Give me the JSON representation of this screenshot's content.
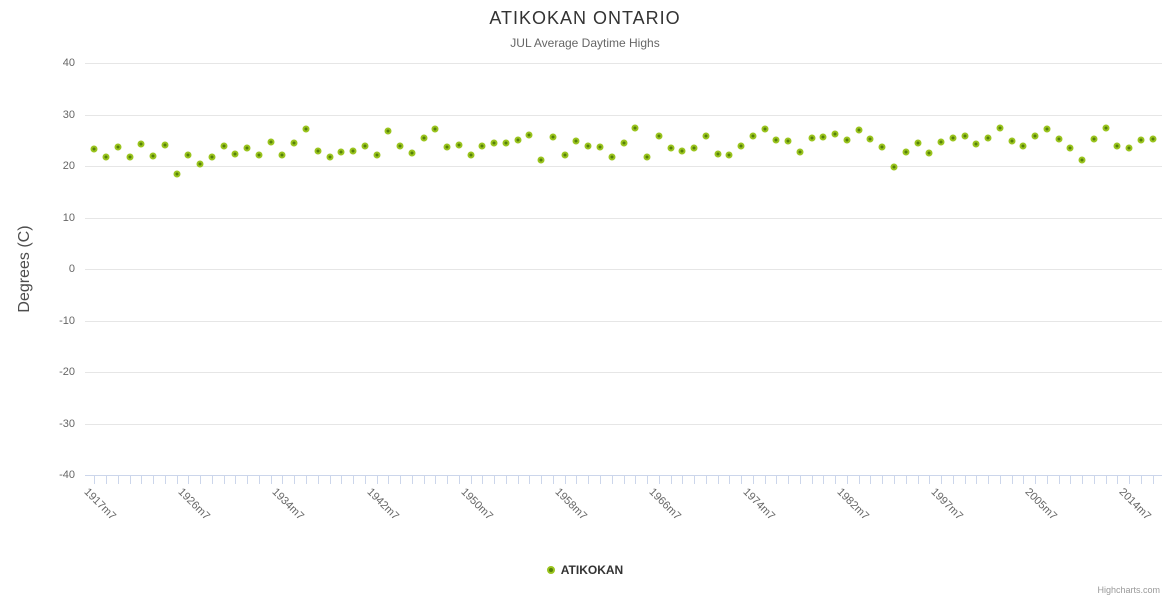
{
  "header": {
    "title": "ATIKOKAN ONTARIO",
    "subtitle": "JUL Average Daytime Highs"
  },
  "y_axis": {
    "title": "Degrees (C)"
  },
  "legend": {
    "label": "ATIKOKAN"
  },
  "credits": {
    "label": "Highcharts.com"
  },
  "colors": {
    "marker_ring": "#9ac41e",
    "marker_core": "#558009",
    "grid": "#e6e6e6",
    "axis": "#ccd6eb",
    "axis_label": "#666666",
    "title": "#333333"
  },
  "chart_data": {
    "type": "scatter",
    "title": "ATIKOKAN ONTARIO",
    "subtitle": "JUL Average Daytime Highs",
    "xlabel": "",
    "ylabel": "Degrees (C)",
    "ylim": [
      -40,
      40
    ],
    "y_ticks": [
      40,
      30,
      20,
      10,
      0,
      -10,
      -20,
      -30,
      -40
    ],
    "grid": "horizontal",
    "legend_position": "bottom-center",
    "x_tick_labels": [
      "1917m7",
      "1926m7",
      "1934m7",
      "1942m7",
      "1950m7",
      "1958m7",
      "1966m7",
      "1974m7",
      "1982m7",
      "1997m7",
      "2005m7",
      "2014m7"
    ],
    "x_tick_indices": [
      0,
      8,
      16,
      24,
      32,
      40,
      48,
      56,
      64,
      72,
      80,
      88
    ],
    "series": [
      {
        "name": "ATIKOKAN",
        "values": [
          23.3,
          21.7,
          23.7,
          21.7,
          24.3,
          22.0,
          24.0,
          18.4,
          22.2,
          20.4,
          21.8,
          23.8,
          22.4,
          23.5,
          22.1,
          24.7,
          22.2,
          24.4,
          27.1,
          22.9,
          21.8,
          22.7,
          22.9,
          23.8,
          22.2,
          26.7,
          23.9,
          22.5,
          25.5,
          27.1,
          23.6,
          24.0,
          22.1,
          23.9,
          24.4,
          24.5,
          25.1,
          26.0,
          21.1,
          25.6,
          22.2,
          24.8,
          23.9,
          23.7,
          21.8,
          24.5,
          27.4,
          21.8,
          25.8,
          23.5,
          22.9,
          23.5,
          25.9,
          22.4,
          22.2,
          23.8,
          25.9,
          27.2,
          25.1,
          24.9,
          22.7,
          25.5,
          25.7,
          26.2,
          25.0,
          27.0,
          25.3,
          23.7,
          19.9,
          22.7,
          24.4,
          22.5,
          24.7,
          25.5,
          25.8,
          24.2,
          25.5,
          27.4,
          24.8,
          23.9,
          25.9,
          27.1,
          25.3,
          23.4,
          21.1,
          25.3,
          27.3,
          23.8,
          23.5,
          25.1,
          25.2
        ]
      }
    ]
  }
}
